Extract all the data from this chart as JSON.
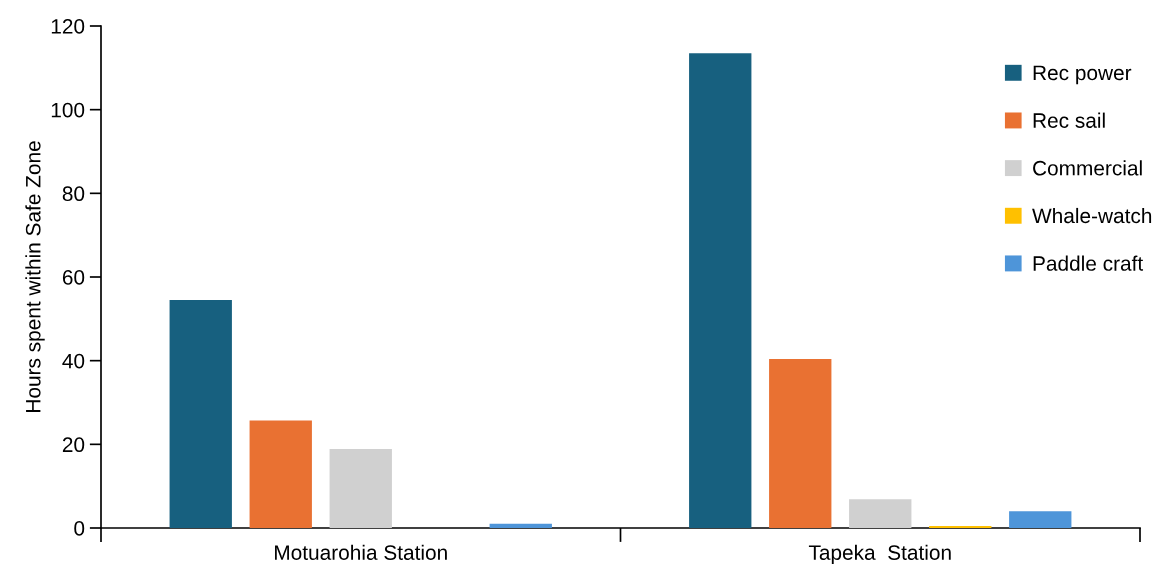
{
  "chart_data": {
    "type": "bar",
    "ylabel": "Hours spent within Safe Zone",
    "categories": [
      "Motuarohia Station",
      "Tapeka  Station"
    ],
    "series": [
      {
        "name": "Rec power",
        "color": "#17607f",
        "values": [
          54.5,
          113.5
        ]
      },
      {
        "name": "Rec sail",
        "color": "#e97132",
        "values": [
          25.7,
          40.4
        ]
      },
      {
        "name": "Commercial",
        "color": "#d0d0d0",
        "values": [
          18.9,
          6.9
        ]
      },
      {
        "name": "Whale-watch",
        "color": "#ffc000",
        "values": [
          0,
          0.5
        ]
      },
      {
        "name": "Paddle craft",
        "color": "#4e95d9",
        "values": [
          1.0,
          4.0
        ]
      }
    ],
    "ylim": [
      0,
      120
    ],
    "yticks": [
      0,
      20,
      40,
      60,
      80,
      100,
      120
    ],
    "grid": false,
    "legend": "top right"
  }
}
